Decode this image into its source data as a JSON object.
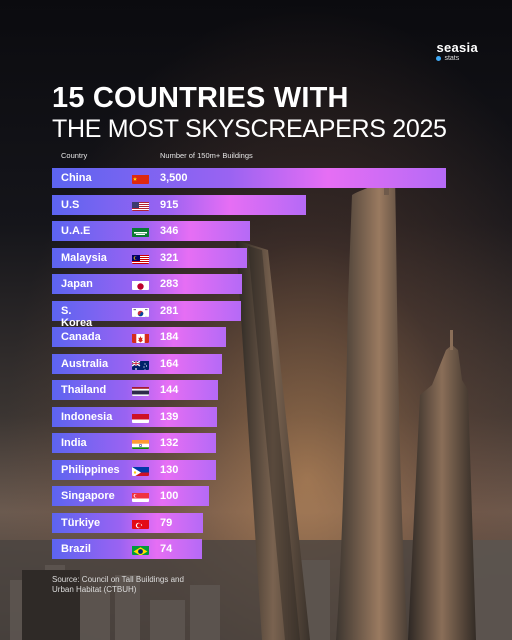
{
  "brand": {
    "name": "seasia",
    "sub": "stats",
    "dot_color": "#3fa9f5"
  },
  "title": {
    "line1": "15 COUNTRIES WITH",
    "line2": "THE MOST SKYSCREAPERS 2025"
  },
  "headers": {
    "country": "Country",
    "value": "Number of 150m+ Buildings"
  },
  "source": "Source: Council on Tall Buildings and Urban Habitat (CTBUH)",
  "chart_data": {
    "type": "bar",
    "orientation": "horizontal",
    "title": "15 COUNTRIES WITH THE MOST SKYSCREAPERS 2025",
    "xlabel": "Number of 150m+ Buildings",
    "ylabel": "Country",
    "categories": [
      "China",
      "U.S",
      "U.A.E",
      "Malaysia",
      "Japan",
      "S. Korea",
      "Canada",
      "Australia",
      "Thailand",
      "Indonesia",
      "India",
      "Philippines",
      "Singapore",
      "Türkiye",
      "Brazil"
    ],
    "values": [
      3500,
      915,
      346,
      321,
      283,
      281,
      184,
      164,
      144,
      139,
      132,
      130,
      100,
      79,
      74
    ],
    "value_labels": [
      "3,500",
      "915",
      "346",
      "321",
      "283",
      "281",
      "184",
      "164",
      "144",
      "139",
      "132",
      "130",
      "100",
      "79",
      "74"
    ],
    "flags": [
      "flag-china-icon",
      "flag-usa-icon",
      "flag-uae-icon",
      "flag-malaysia-icon",
      "flag-japan-icon",
      "flag-south-korea-icon",
      "flag-canada-icon",
      "flag-australia-icon",
      "flag-thailand-icon",
      "flag-indonesia-icon",
      "flag-india-icon",
      "flag-philippines-icon",
      "flag-singapore-icon",
      "flag-turkiye-icon",
      "flag-brazil-icon"
    ],
    "bar_gradient": [
      "#5c64f0",
      "#9a63f2",
      "#e66ef4",
      "#b56af6"
    ],
    "grid": false,
    "legend": "none"
  }
}
